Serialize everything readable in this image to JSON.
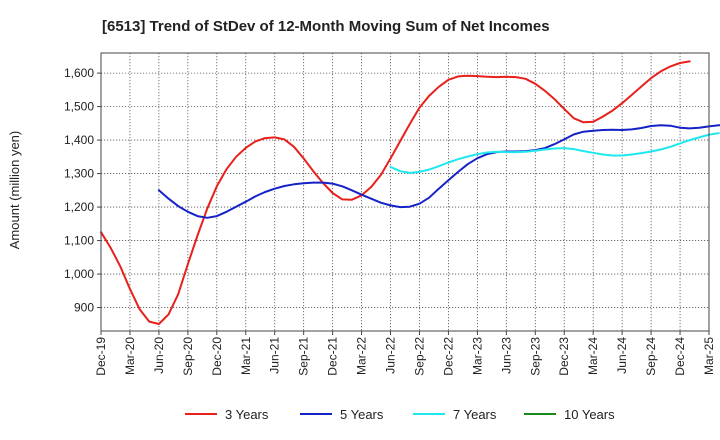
{
  "chart_data": {
    "type": "line",
    "title": "[6513]  Trend of StDev of 12-Month Moving Sum of Net Incomes",
    "ylabel": "Amount (million yen)",
    "xlabel": "",
    "ylim": [
      830,
      1660
    ],
    "yticks": [
      900,
      1000,
      1100,
      1200,
      1300,
      1400,
      1500,
      1600
    ],
    "ytick_labels": [
      "900",
      "1,000",
      "1,100",
      "1,200",
      "1,300",
      "1,400",
      "1,500",
      "1,600"
    ],
    "xtick_labels": [
      "Dec-19",
      "Mar-20",
      "Jun-20",
      "Sep-20",
      "Dec-20",
      "Mar-21",
      "Jun-21",
      "Sep-21",
      "Dec-21",
      "Mar-22",
      "Jun-22",
      "Sep-22",
      "Dec-22",
      "Mar-23",
      "Jun-23",
      "Sep-23",
      "Dec-23",
      "Mar-24",
      "Jun-24",
      "Sep-24",
      "Dec-24",
      "Mar-25"
    ],
    "grid": true,
    "legend_position": "bottom",
    "series": [
      {
        "name": "3 Years",
        "color": "#e8201c",
        "start_index": 0,
        "values": [
          1125,
          1078,
          1023,
          955,
          895,
          858,
          851,
          880,
          940,
          1030,
          1115,
          1195,
          1262,
          1313,
          1350,
          1377,
          1396,
          1406,
          1408,
          1402,
          1380,
          1345,
          1307,
          1272,
          1242,
          1223,
          1222,
          1235,
          1260,
          1296,
          1345,
          1397,
          1448,
          1497,
          1532,
          1559,
          1580,
          1590,
          1592,
          1591,
          1589,
          1588,
          1589,
          1588,
          1583,
          1568,
          1547,
          1522,
          1493,
          1465,
          1453,
          1455,
          1470,
          1488,
          1510,
          1535,
          1560,
          1585,
          1605,
          1620,
          1630,
          1635
        ]
      },
      {
        "name": "5 Years",
        "color": "#1522c8",
        "start_index": 6,
        "values": [
          1250,
          1225,
          1203,
          1186,
          1173,
          1168,
          1173,
          1186,
          1201,
          1216,
          1232,
          1245,
          1255,
          1263,
          1268,
          1271,
          1273,
          1273,
          1270,
          1262,
          1250,
          1237,
          1225,
          1213,
          1205,
          1200,
          1201,
          1210,
          1228,
          1255,
          1280,
          1305,
          1328,
          1346,
          1358,
          1364,
          1366,
          1366,
          1367,
          1370,
          1376,
          1388,
          1402,
          1417,
          1425,
          1428,
          1430,
          1431,
          1430,
          1432,
          1436,
          1442,
          1444,
          1443,
          1437,
          1435,
          1437,
          1441,
          1444,
          1445,
          1446
        ]
      },
      {
        "name": "7 Years",
        "color": "#1ee8ee",
        "start_index": 30,
        "values": [
          1320,
          1307,
          1302,
          1305,
          1312,
          1322,
          1333,
          1343,
          1351,
          1358,
          1363,
          1365,
          1364,
          1364,
          1365,
          1368,
          1372,
          1375,
          1376,
          1373,
          1367,
          1362,
          1357,
          1354,
          1354,
          1357,
          1361,
          1366,
          1372,
          1380,
          1390,
          1400,
          1408,
          1416,
          1421
        ]
      },
      {
        "name": "10 Years",
        "color": "#1a8a1a",
        "start_index": 0,
        "values": []
      }
    ]
  }
}
